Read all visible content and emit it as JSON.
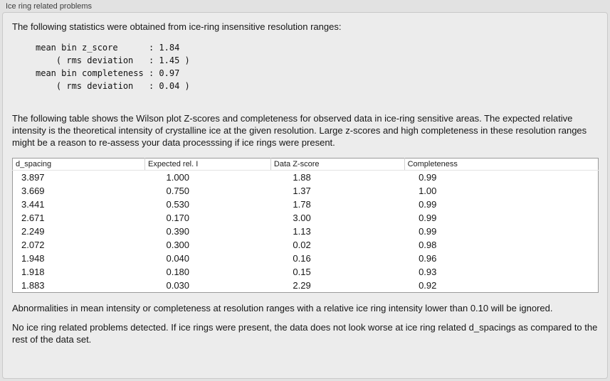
{
  "panel": {
    "title": "Ice ring related problems"
  },
  "intro": "The following statistics were obtained from ice-ring insensitive resolution ranges:",
  "stats_block": "mean bin z_score      : 1.84\n    ( rms deviation   : 1.45 )\nmean bin completeness : 0.97\n    ( rms deviation   : 0.04 )",
  "table_description": "The following table shows the Wilson plot Z-scores and completeness for observed data in ice-ring sensitive areas. The expected relative intensity is the theoretical intensity of crystalline ice at the given resolution. Large z-scores and high completeness in these resolution ranges might be a reason to re-assess your data processsing if ice rings were present.",
  "table": {
    "headers": [
      "d_spacing",
      "Expected rel. I",
      "Data Z-score",
      "Completeness"
    ],
    "rows": [
      [
        "3.897",
        "1.000",
        "1.88",
        "0.99"
      ],
      [
        "3.669",
        "0.750",
        "1.37",
        "1.00"
      ],
      [
        "3.441",
        "0.530",
        "1.78",
        "0.99"
      ],
      [
        "2.671",
        "0.170",
        "3.00",
        "0.99"
      ],
      [
        "2.249",
        "0.390",
        "1.13",
        "0.99"
      ],
      [
        "2.072",
        "0.300",
        "0.02",
        "0.98"
      ],
      [
        "1.948",
        "0.040",
        "0.16",
        "0.96"
      ],
      [
        "1.918",
        "0.180",
        "0.15",
        "0.93"
      ],
      [
        "1.883",
        "0.030",
        "2.29",
        "0.92"
      ]
    ]
  },
  "note_ignore": "Abnormalities in mean intensity or completeness at resolution ranges with a relative ice ring intensity lower than 0.10 will be ignored.",
  "conclusion": "No ice ring related problems detected. If ice rings were present, the data does not look worse at ice ring related d_spacings as compared to the rest of the data set.",
  "colors": {
    "outer_bg": "#e2e2e2",
    "panel_bg": "#ececec",
    "table_bg": "#ffffff",
    "table_border": "#9b9b9b",
    "text": "#161616"
  }
}
